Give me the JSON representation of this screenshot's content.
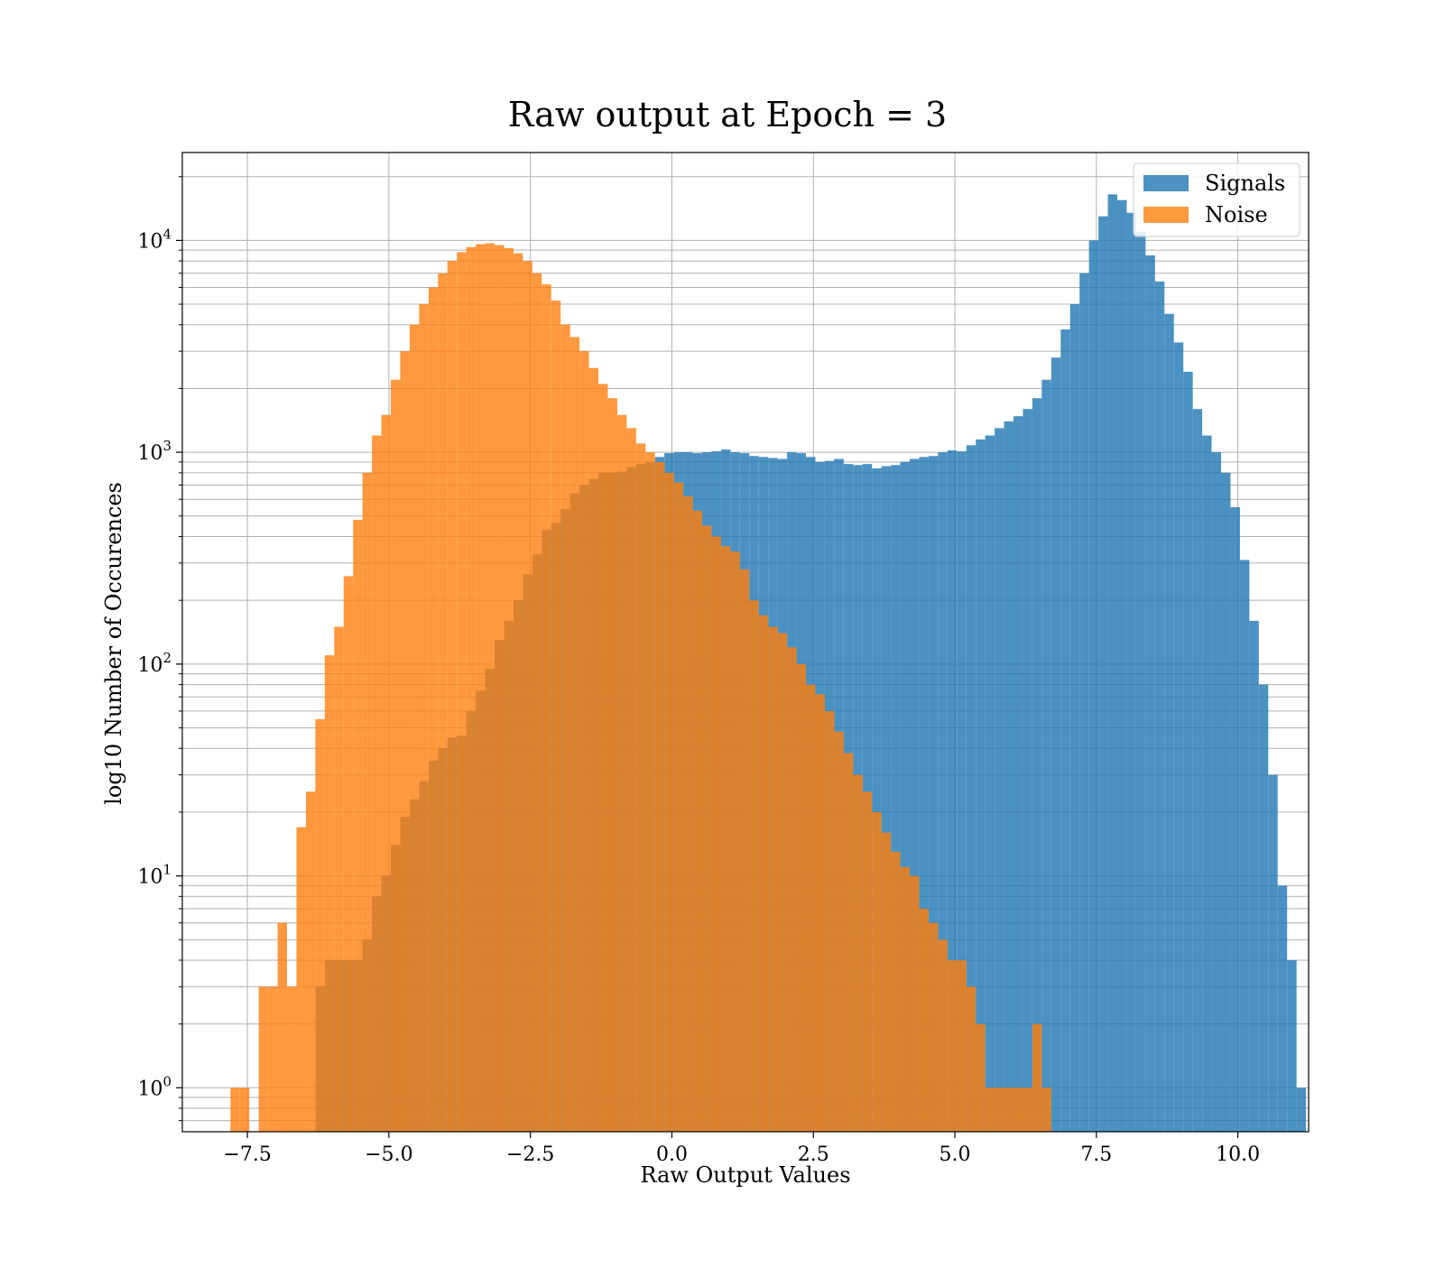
{
  "chart_data": {
    "type": "bar",
    "title": "Raw output at Epoch = 3",
    "xlabel": "Raw Output Values",
    "ylabel": "log10 Number of Occurences",
    "y_scale": "log",
    "xlim": [
      -8.65,
      11.25
    ],
    "ylim": [
      0.62,
      26000
    ],
    "grid": true,
    "legend_position": "top-right",
    "x_ticks": [
      {
        "value": -7.5,
        "label": "−7.5"
      },
      {
        "value": -5.0,
        "label": "−5.0"
      },
      {
        "value": -2.5,
        "label": "−2.5"
      },
      {
        "value": 0.0,
        "label": "0.0"
      },
      {
        "value": 2.5,
        "label": "2.5"
      },
      {
        "value": 5.0,
        "label": "5.0"
      },
      {
        "value": 7.5,
        "label": "7.5"
      },
      {
        "value": 10.0,
        "label": "10.0"
      }
    ],
    "y_ticks": [
      {
        "value": 1,
        "base": "10",
        "exp": "0"
      },
      {
        "value": 10,
        "base": "10",
        "exp": "1"
      },
      {
        "value": 100,
        "base": "10",
        "exp": "2"
      },
      {
        "value": 1000,
        "base": "10",
        "exp": "3"
      },
      {
        "value": 10000,
        "base": "10",
        "exp": "4"
      }
    ],
    "series": [
      {
        "name": "Signals",
        "color": "#1f77b4",
        "opacity": 0.8,
        "bin_start": -6.3,
        "bin_width": 0.1667,
        "values": [
          3,
          4,
          4,
          4,
          4,
          5,
          8,
          10,
          14,
          19,
          23,
          28,
          35,
          40,
          45,
          46,
          60,
          75,
          95,
          130,
          160,
          200,
          265,
          330,
          430,
          465,
          540,
          640,
          700,
          750,
          800,
          800,
          810,
          850,
          880,
          900,
          950,
          990,
          1000,
          1000,
          990,
          1000,
          1010,
          1030,
          1000,
          990,
          960,
          950,
          940,
          930,
          1000,
          990,
          950,
          900,
          910,
          930,
          880,
          870,
          880,
          840,
          860,
          870,
          900,
          930,
          950,
          960,
          1000,
          1020,
          1010,
          1080,
          1150,
          1200,
          1300,
          1400,
          1480,
          1600,
          1800,
          2200,
          2800,
          3800,
          5000,
          7000,
          10000,
          13000,
          16500,
          15500,
          13500,
          11000,
          8500,
          6400,
          4500,
          3300,
          2400,
          1600,
          1200,
          1000,
          800,
          550,
          310,
          160,
          80,
          30,
          9,
          4,
          1
        ]
      },
      {
        "name": "Noise",
        "color": "#ff7f0e",
        "opacity": 0.8,
        "bin_start": -7.8,
        "bin_width": 0.1667,
        "values": [
          1,
          1,
          0,
          3,
          3,
          6,
          3,
          17,
          25,
          55,
          110,
          150,
          260,
          480,
          800,
          1200,
          1500,
          2200,
          3000,
          4000,
          5000,
          6000,
          7000,
          8000,
          8800,
          9300,
          9600,
          9700,
          9500,
          9200,
          8700,
          8000,
          7000,
          6200,
          5200,
          4000,
          3500,
          3000,
          2500,
          2100,
          1800,
          1500,
          1300,
          1100,
          1000,
          900,
          800,
          720,
          620,
          530,
          450,
          400,
          360,
          340,
          280,
          200,
          170,
          150,
          140,
          120,
          100,
          80,
          72,
          60,
          48,
          38,
          30,
          25,
          20,
          16,
          13,
          11,
          10,
          7,
          6,
          5,
          4,
          4,
          3,
          2,
          1,
          1,
          1,
          1,
          1,
          2,
          1,
          0
        ]
      }
    ]
  }
}
